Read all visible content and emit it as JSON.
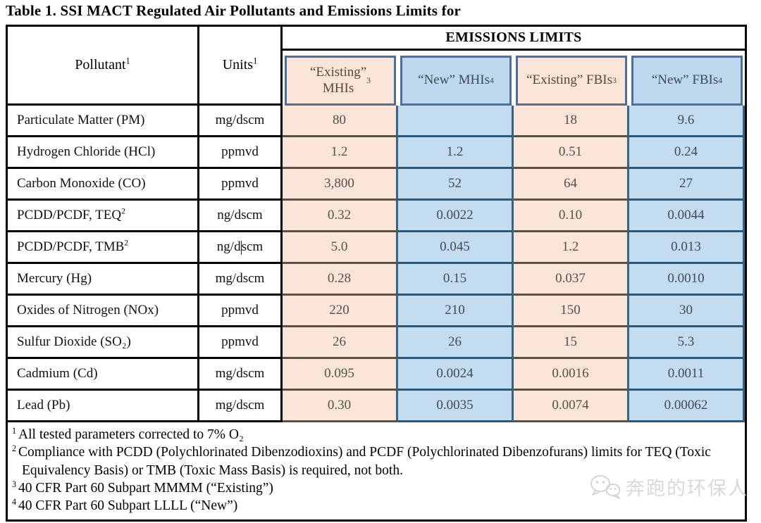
{
  "title": "Table 1. SSI MACT Regulated Air Pollutants and Emissions Limits for",
  "table": {
    "header": {
      "pollutant": {
        "label": "Pollutant",
        "sup": "1"
      },
      "units": {
        "label": "Units",
        "sup": "1"
      },
      "emissions_limits": "EMISSIONS LIMITS",
      "subcolumns": [
        {
          "text": "“Existing”\nMHIs",
          "sup": "3",
          "type": "existing"
        },
        {
          "text": "“New” MHIs",
          "sup": "4",
          "type": "new"
        },
        {
          "text": "“Existing” FBIs",
          "sup": "3",
          "type": "existing"
        },
        {
          "text": "“New” FBIs",
          "sup": "4",
          "type": "new"
        }
      ]
    },
    "rows": [
      {
        "pollutant": "Particulate Matter (PM)",
        "sup": "",
        "units": "mg/dscm",
        "values": [
          "80",
          "",
          "18",
          "9.6"
        ]
      },
      {
        "pollutant": "Hydrogen Chloride (HCl)",
        "sup": "",
        "units": "ppmvd",
        "values": [
          "1.2",
          "1.2",
          "0.51",
          "0.24"
        ]
      },
      {
        "pollutant": "Carbon Monoxide (CO)",
        "sup": "",
        "units": "ppmvd",
        "values": [
          "3,800",
          "52",
          "64",
          "27"
        ]
      },
      {
        "pollutant": "PCDD/PCDF, TEQ",
        "sup": "2",
        "units": "ng/dscm",
        "values": [
          "0.32",
          "0.0022",
          "0.10",
          "0.0044"
        ]
      },
      {
        "pollutant": "PCDD/PCDF, TMB",
        "sup": "2",
        "units": "ng/dscm",
        "caret": true,
        "values": [
          "5.0",
          "0.045",
          "1.2",
          "0.013"
        ]
      },
      {
        "pollutant": "Mercury (Hg)",
        "sup": "",
        "units": "mg/dscm",
        "values": [
          "0.28",
          "0.15",
          "0.037",
          "0.0010"
        ]
      },
      {
        "pollutant": "Oxides of Nitrogen (NOx)",
        "sup": "",
        "units": "ppmvd",
        "values": [
          "220",
          "210",
          "150",
          "30"
        ]
      },
      {
        "pollutant": "Sulfur Dioxide (SO₂)",
        "sup": "",
        "units": "ppmvd",
        "values": [
          "26",
          "26",
          "15",
          "5.3"
        ]
      },
      {
        "pollutant": "Cadmium (Cd)",
        "sup": "",
        "units": "mg/dscm",
        "values": [
          "0.095",
          "0.0024",
          "0.0016",
          "0.0011"
        ]
      },
      {
        "pollutant": "Lead (Pb)",
        "sup": "",
        "units": "mg/dscm",
        "values": [
          "0.30",
          "0.0035",
          "0.0074",
          "0.00062"
        ]
      }
    ],
    "footnotes": [
      {
        "sup": "1",
        "text": "All tested parameters corrected to 7% O₂"
      },
      {
        "sup": "2",
        "text": "Compliance with PCDD (Polychlorinated Dibenzodioxins) and PCDF (Polychlorinated Dibenzofurans) limits for TEQ (Toxic Equivalency Basis) or TMB (Toxic Mass Basis) is required, not both."
      },
      {
        "sup": "3",
        "text": "40 CFR Part 60 Subpart MMMM (“Existing”)"
      },
      {
        "sup": "4",
        "text": "40 CFR Part 60 Subpart LLLL (“New”)"
      }
    ]
  },
  "watermark": {
    "text": "奔跑的环保人",
    "icon": "wechat-icon"
  },
  "colors": {
    "existing_fill": "#FBE5D8",
    "new_fill": "#C4DCF0",
    "column_border": "#3A6388",
    "subheader_border": "#4E7096",
    "existing_row_border": "#5A5045",
    "new_row_border": "#2B5878",
    "grid_border": "#000000"
  }
}
